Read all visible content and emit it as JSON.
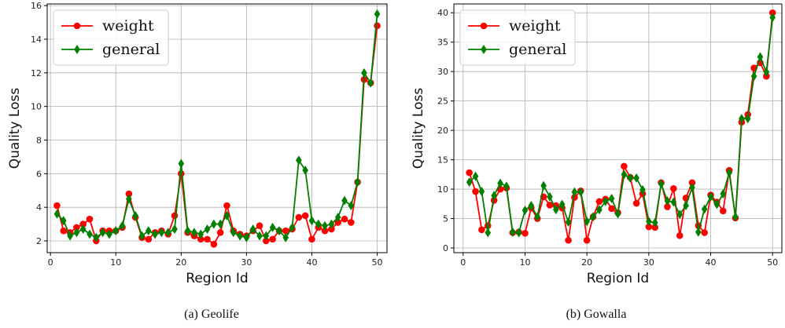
{
  "chart_data": [
    {
      "type": "line",
      "caption": "(a)  Geolife",
      "xlabel": "Region Id",
      "ylabel": "Quality Loss",
      "xlim": [
        -0.5,
        51.5
      ],
      "ylim": [
        1.3,
        16.1
      ],
      "xticks": [
        0,
        10,
        20,
        30,
        40,
        50
      ],
      "yticks": [
        2,
        4,
        6,
        8,
        10,
        12,
        14,
        16
      ],
      "grid": true,
      "legend": "top-left",
      "x": [
        1,
        2,
        3,
        4,
        5,
        6,
        7,
        8,
        9,
        10,
        11,
        12,
        13,
        14,
        15,
        16,
        17,
        18,
        19,
        20,
        21,
        22,
        23,
        24,
        25,
        26,
        27,
        28,
        29,
        30,
        31,
        32,
        33,
        34,
        35,
        36,
        37,
        38,
        39,
        40,
        41,
        42,
        43,
        44,
        45,
        46,
        47,
        48,
        49,
        50
      ],
      "series": [
        {
          "name": "weight",
          "color": "#ff0000",
          "marker": "circle",
          "values": [
            4.1,
            2.6,
            2.5,
            2.8,
            3.0,
            3.3,
            2.0,
            2.6,
            2.6,
            2.6,
            2.8,
            4.8,
            3.4,
            2.2,
            2.1,
            2.5,
            2.6,
            2.4,
            3.5,
            6.0,
            2.5,
            2.3,
            2.1,
            2.1,
            1.8,
            2.5,
            4.1,
            2.6,
            2.4,
            2.3,
            2.6,
            2.9,
            2.0,
            2.1,
            2.6,
            2.6,
            2.7,
            3.4,
            3.5,
            2.1,
            2.8,
            2.6,
            2.7,
            3.1,
            3.3,
            3.1,
            5.5,
            11.6,
            11.4,
            14.8
          ]
        },
        {
          "name": "general",
          "color": "#008000",
          "marker": "diamond",
          "values": [
            3.6,
            3.2,
            2.3,
            2.5,
            2.7,
            2.4,
            2.2,
            2.5,
            2.4,
            2.6,
            2.9,
            4.5,
            3.5,
            2.3,
            2.6,
            2.4,
            2.5,
            2.5,
            2.7,
            6.6,
            2.6,
            2.5,
            2.4,
            2.7,
            3.0,
            3.0,
            3.5,
            2.5,
            2.3,
            2.2,
            2.7,
            2.3,
            2.3,
            2.8,
            2.6,
            2.2,
            2.8,
            6.8,
            6.2,
            3.2,
            3.0,
            2.9,
            3.0,
            3.4,
            4.4,
            4.1,
            5.5,
            12.0,
            11.4,
            15.5
          ]
        }
      ]
    },
    {
      "type": "line",
      "caption": "(b)  Gowalla",
      "xlabel": "Region Id",
      "ylabel": "Quality Loss",
      "xlim": [
        -1.5,
        51.5
      ],
      "ylim": [
        -0.8,
        41.5
      ],
      "xticks": [
        0,
        10,
        20,
        30,
        40,
        50
      ],
      "yticks": [
        0,
        5,
        10,
        15,
        20,
        25,
        30,
        35,
        40
      ],
      "grid": true,
      "legend": "top-left",
      "x": [
        1,
        2,
        3,
        4,
        5,
        6,
        7,
        8,
        9,
        10,
        11,
        12,
        13,
        14,
        15,
        16,
        17,
        18,
        19,
        20,
        21,
        22,
        23,
        24,
        25,
        26,
        27,
        28,
        29,
        30,
        31,
        32,
        33,
        34,
        35,
        36,
        37,
        38,
        39,
        40,
        41,
        42,
        43,
        44,
        45,
        46,
        47,
        48,
        49,
        50
      ],
      "series": [
        {
          "name": "weight",
          "color": "#ff0000",
          "marker": "circle",
          "values": [
            12.8,
            9.6,
            3.1,
            3.8,
            8.1,
            10.0,
            10.2,
            2.6,
            2.7,
            2.5,
            6.8,
            5.0,
            8.7,
            7.3,
            7.2,
            6.8,
            1.3,
            8.6,
            9.7,
            1.3,
            5.3,
            7.9,
            8.3,
            6.7,
            6.0,
            13.9,
            12.0,
            7.6,
            9.2,
            3.6,
            3.5,
            11.1,
            7.0,
            10.1,
            2.1,
            8.5,
            11.1,
            3.8,
            2.6,
            9.0,
            7.8,
            6.3,
            13.2,
            5.1,
            21.4,
            22.7,
            30.6,
            31.5,
            29.2,
            40.0
          ]
        },
        {
          "name": "general",
          "color": "#008000",
          "marker": "diamond",
          "values": [
            11.2,
            12.2,
            9.6,
            2.6,
            8.9,
            11.0,
            10.5,
            2.7,
            2.6,
            6.4,
            7.2,
            5.3,
            10.6,
            8.7,
            6.5,
            7.4,
            4.4,
            9.5,
            9.5,
            4.5,
            5.3,
            6.5,
            7.9,
            8.4,
            5.8,
            12.5,
            11.9,
            11.9,
            9.9,
            4.5,
            4.3,
            10.9,
            8.0,
            7.8,
            5.7,
            7.2,
            10.3,
            2.7,
            6.6,
            8.7,
            7.4,
            9.2,
            12.8,
            5.3,
            22.0,
            22.0,
            29.2,
            32.5,
            29.9,
            39.2
          ]
        }
      ]
    }
  ]
}
